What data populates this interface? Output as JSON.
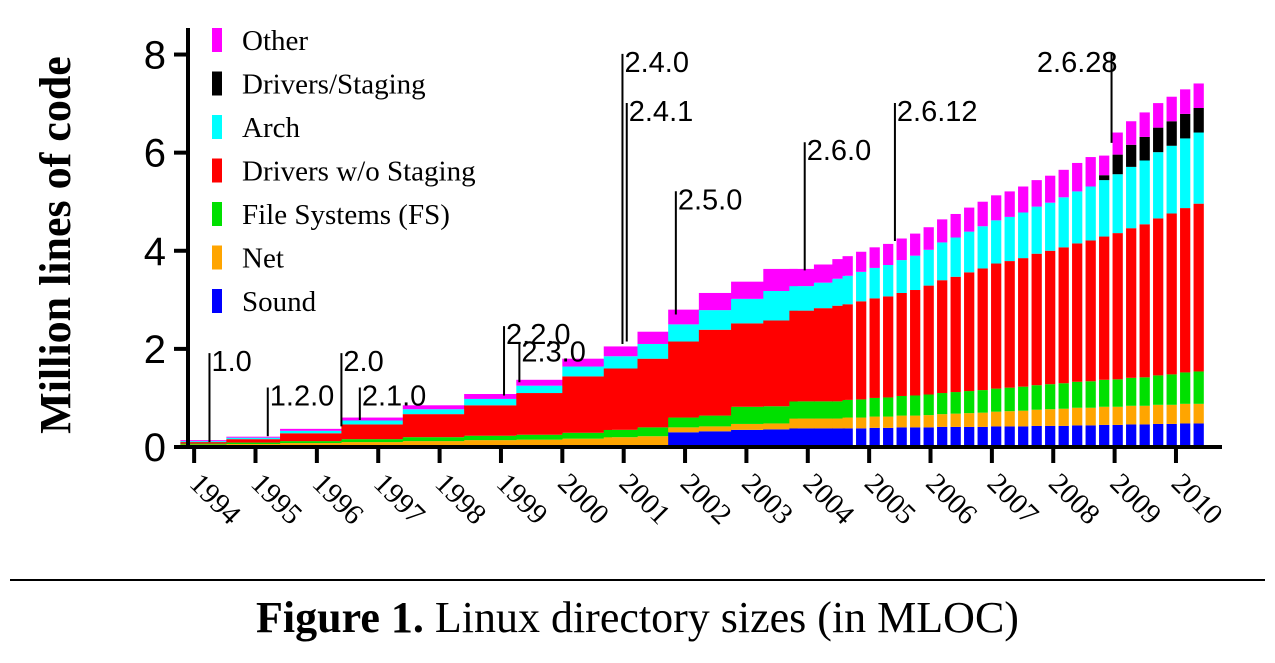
{
  "chart_data": {
    "type": "bar",
    "stacked": true,
    "ylabel": "Million lines of code",
    "ylim": [
      0,
      8.5
    ],
    "yticks": [
      0,
      2,
      4,
      6,
      8
    ],
    "ytick_labels": [
      "0",
      "2",
      "4",
      "6",
      "8"
    ],
    "xlim": [
      1993.9,
      2010.75
    ],
    "xticks": [
      1994,
      1995,
      1996,
      1997,
      1998,
      1999,
      2000,
      2001,
      2002,
      2003,
      2004,
      2005,
      2006,
      2007,
      2008,
      2009,
      2010
    ],
    "xtick_labels": [
      "1994",
      "1995",
      "1996",
      "1997",
      "1998",
      "1999",
      "2000",
      "2001",
      "2002",
      "2003",
      "2004",
      "2005",
      "2006",
      "2007",
      "2008",
      "2009",
      "2010"
    ],
    "legend_position": "top-left",
    "series": [
      {
        "name": "Sound",
        "color": "#0000ff"
      },
      {
        "name": "Net",
        "color": "#ffa500"
      },
      {
        "name": "File Systems (FS)",
        "color": "#00e000"
      },
      {
        "name": "Drivers w/o Staging",
        "color": "#ff0000"
      },
      {
        "name": "Arch",
        "color": "#00ffff"
      },
      {
        "name": "Drivers/Staging",
        "color": "#000000"
      },
      {
        "name": "Other",
        "color": "#ff00ff"
      }
    ],
    "legend_order": [
      "Other",
      "Drivers/Staging",
      "Arch",
      "Drivers w/o Staging",
      "File Systems (FS)",
      "Net",
      "Sound"
    ],
    "segments": [
      {
        "dense": true,
        "x": [
          1994.15,
          1994.9,
          1995.9,
          1996.9,
          1997.9,
          1998.9,
          1999.6,
          2000.4
        ],
        "values": {
          "Sound": [
            0,
            0,
            0,
            0,
            0,
            0,
            0,
            0
          ],
          "Net": [
            0.05,
            0.06,
            0.08,
            0.1,
            0.12,
            0.14,
            0.15,
            0.17
          ],
          "File Systems (FS)": [
            0.02,
            0.03,
            0.04,
            0.06,
            0.08,
            0.09,
            0.1,
            0.12
          ],
          "Drivers w/o Staging": [
            0.03,
            0.07,
            0.16,
            0.3,
            0.47,
            0.62,
            0.85,
            1.15
          ],
          "Arch": [
            0.02,
            0.03,
            0.05,
            0.08,
            0.1,
            0.13,
            0.15,
            0.2
          ],
          "Drivers/Staging": [
            0,
            0,
            0,
            0,
            0,
            0,
            0,
            0
          ],
          "Other": [
            0.02,
            0.02,
            0.04,
            0.06,
            0.08,
            0.1,
            0.12,
            0.16
          ]
        }
      },
      {
        "dense": true,
        "x": [
          2000.95,
          2001.5,
          2001.95,
          2002.5,
          2003.0,
          2003.55
        ],
        "values": {
          "Sound": [
            0,
            0,
            0.3,
            0.32,
            0.35,
            0.36
          ],
          "Net": [
            0.2,
            0.22,
            0.1,
            0.1,
            0.12,
            0.12
          ],
          "File Systems (FS)": [
            0.15,
            0.18,
            0.2,
            0.22,
            0.35,
            0.35
          ],
          "Drivers w/o Staging": [
            1.25,
            1.4,
            1.55,
            1.75,
            1.7,
            1.75
          ],
          "Arch": [
            0.25,
            0.3,
            0.35,
            0.4,
            0.5,
            0.6
          ],
          "Drivers/Staging": [
            0,
            0,
            0,
            0,
            0,
            0
          ],
          "Other": [
            0.2,
            0.25,
            0.3,
            0.35,
            0.35,
            0.45
          ]
        }
      },
      {
        "dense": true,
        "x": [
          2003.9,
          2004.3,
          2004.5
        ],
        "values": {
          "Sound": [
            0.38,
            0.38,
            0.38
          ],
          "Net": [
            0.2,
            0.2,
            0.2
          ],
          "File Systems (FS)": [
            0.35,
            0.35,
            0.35
          ],
          "Drivers w/o Staging": [
            1.85,
            1.9,
            1.95
          ],
          "Arch": [
            0.5,
            0.52,
            0.55
          ],
          "Drivers/Staging": [
            0,
            0,
            0
          ],
          "Other": [
            0.35,
            0.37,
            0.4
          ]
        }
      },
      {
        "dense": false,
        "x": [
          2004.65,
          2004.87,
          2005.09,
          2005.31,
          2005.53,
          2005.75,
          2005.97,
          2006.19,
          2006.41,
          2006.63,
          2006.85,
          2007.07,
          2007.29,
          2007.51,
          2007.73,
          2007.95,
          2008.17,
          2008.39,
          2008.61,
          2008.83,
          2009.05,
          2009.27,
          2009.49,
          2009.71,
          2009.93,
          2010.15,
          2010.37
        ],
        "values": {
          "Sound": [
            0.38,
            0.38,
            0.39,
            0.39,
            0.4,
            0.4,
            0.4,
            0.41,
            0.41,
            0.41,
            0.41,
            0.42,
            0.42,
            0.42,
            0.43,
            0.43,
            0.43,
            0.44,
            0.44,
            0.45,
            0.45,
            0.46,
            0.46,
            0.47,
            0.47,
            0.48,
            0.48
          ],
          "Net": [
            0.22,
            0.22,
            0.23,
            0.23,
            0.24,
            0.24,
            0.25,
            0.26,
            0.27,
            0.28,
            0.29,
            0.3,
            0.31,
            0.32,
            0.33,
            0.34,
            0.35,
            0.36,
            0.36,
            0.37,
            0.37,
            0.38,
            0.38,
            0.39,
            0.39,
            0.4,
            0.4
          ],
          "File Systems (FS)": [
            0.36,
            0.37,
            0.38,
            0.39,
            0.4,
            0.41,
            0.42,
            0.43,
            0.44,
            0.45,
            0.46,
            0.47,
            0.48,
            0.49,
            0.5,
            0.51,
            0.52,
            0.53,
            0.54,
            0.55,
            0.56,
            0.57,
            0.58,
            0.6,
            0.62,
            0.64,
            0.66
          ],
          "Drivers w/o Staging": [
            1.95,
            2.0,
            2.03,
            2.06,
            2.1,
            2.15,
            2.22,
            2.3,
            2.35,
            2.42,
            2.48,
            2.55,
            2.58,
            2.62,
            2.68,
            2.72,
            2.77,
            2.82,
            2.87,
            2.92,
            2.98,
            3.05,
            3.12,
            3.2,
            3.28,
            3.35,
            3.42
          ],
          "Arch": [
            0.58,
            0.6,
            0.62,
            0.64,
            0.67,
            0.7,
            0.73,
            0.77,
            0.8,
            0.83,
            0.86,
            0.88,
            0.9,
            0.93,
            0.96,
            0.98,
            1.02,
            1.06,
            1.1,
            1.15,
            1.2,
            1.25,
            1.3,
            1.35,
            1.38,
            1.42,
            1.45
          ],
          "Drivers/Staging": [
            0,
            0,
            0,
            0,
            0,
            0,
            0,
            0,
            0,
            0,
            0,
            0,
            0,
            0,
            0,
            0,
            0,
            0,
            0,
            0.1,
            0.4,
            0.45,
            0.48,
            0.5,
            0.5,
            0.5,
            0.5
          ],
          "Other": [
            0.4,
            0.41,
            0.42,
            0.43,
            0.44,
            0.45,
            0.46,
            0.47,
            0.48,
            0.49,
            0.5,
            0.51,
            0.52,
            0.53,
            0.54,
            0.55,
            0.56,
            0.58,
            0.6,
            0.4,
            0.45,
            0.48,
            0.5,
            0.5,
            0.5,
            0.5,
            0.5
          ]
        }
      }
    ],
    "annotations": [
      {
        "label": "1.0",
        "x": 1994.25,
        "y_bottom": 0.1,
        "y_label": 1.75,
        "side": "right"
      },
      {
        "label": "1.2.0",
        "x": 1995.2,
        "y_bottom": 0.22,
        "y_label": 1.05,
        "side": "right"
      },
      {
        "label": "2.0",
        "x": 1996.4,
        "y_bottom": 0.42,
        "y_label": 1.75,
        "side": "right"
      },
      {
        "label": "2.1.0",
        "x": 1996.7,
        "y_bottom": 0.55,
        "y_label": 1.05,
        "side": "right"
      },
      {
        "label": "2.2.0",
        "x": 1999.05,
        "y_bottom": 1.05,
        "y_label": 2.3,
        "side": "right"
      },
      {
        "label": "2.3.0",
        "x": 1999.3,
        "y_bottom": 1.32,
        "y_label": 1.95,
        "side": "right"
      },
      {
        "label": "2.4.0",
        "x": 2000.98,
        "y_bottom": 2.1,
        "y_label": 7.85,
        "side": "right"
      },
      {
        "label": "2.4.1",
        "x": 2001.05,
        "y_bottom": 2.15,
        "y_label": 6.85,
        "side": "right"
      },
      {
        "label": "2.5.0",
        "x": 2001.85,
        "y_bottom": 2.7,
        "y_label": 5.05,
        "side": "right"
      },
      {
        "label": "2.6.0",
        "x": 2003.95,
        "y_bottom": 3.6,
        "y_label": 6.05,
        "side": "right"
      },
      {
        "label": "2.6.12",
        "x": 2005.42,
        "y_bottom": 4.2,
        "y_label": 6.85,
        "side": "right"
      },
      {
        "label": "2.6.28",
        "x": 2008.95,
        "y_bottom": 6.2,
        "y_label": 7.85,
        "side": "left"
      }
    ]
  },
  "caption": {
    "label": "Figure 1.",
    "text": "Linux directory sizes (in MLOC)"
  }
}
